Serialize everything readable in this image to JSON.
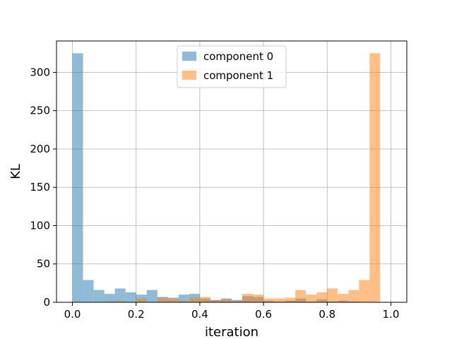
{
  "chart_data": {
    "type": "bar",
    "title": "",
    "xlabel": "iteration",
    "ylabel": "KL",
    "xlim": [
      -0.05,
      1.05
    ],
    "ylim": [
      0,
      341
    ],
    "grid": true,
    "legend_position": "top-center",
    "bin_width": 0.0333,
    "bin_starts": [
      0.0,
      0.0333,
      0.0667,
      0.1,
      0.1333,
      0.1667,
      0.2,
      0.2333,
      0.2667,
      0.3,
      0.3333,
      0.3667,
      0.4,
      0.4333,
      0.4667,
      0.5,
      0.5333,
      0.5667,
      0.6,
      0.6333,
      0.6667,
      0.7,
      0.7333,
      0.7667,
      0.8,
      0.8333,
      0.8667,
      0.9,
      0.9333,
      0.9667
    ],
    "xticks": [
      "0.0",
      "0.2",
      "0.4",
      "0.6",
      "0.8",
      "1.0"
    ],
    "xtick_values": [
      0.0,
      0.2,
      0.4,
      0.6,
      0.8,
      1.0
    ],
    "yticks": [
      "0",
      "50",
      "100",
      "150",
      "200",
      "250",
      "300"
    ],
    "ytick_values": [
      0,
      50,
      100,
      150,
      200,
      250,
      300
    ],
    "series": [
      {
        "name": "component 0",
        "color": "#1f77b4",
        "alpha": 0.5,
        "values": [
          325,
          29,
          16,
          11,
          18,
          13,
          10,
          16,
          7,
          6,
          10,
          11,
          5,
          3,
          5,
          3,
          8,
          7,
          2,
          1,
          2,
          5,
          1,
          4,
          1,
          2,
          1,
          0,
          0,
          0
        ]
      },
      {
        "name": "component 1",
        "color": "#ff7f0e",
        "alpha": 0.5,
        "values": [
          0,
          0,
          0,
          1,
          2,
          0,
          5,
          0,
          6,
          5,
          2,
          6,
          7,
          3,
          4,
          2,
          11,
          10,
          5,
          5,
          6,
          16,
          10,
          13,
          18,
          11,
          16,
          29,
          325,
          0
        ]
      }
    ]
  }
}
